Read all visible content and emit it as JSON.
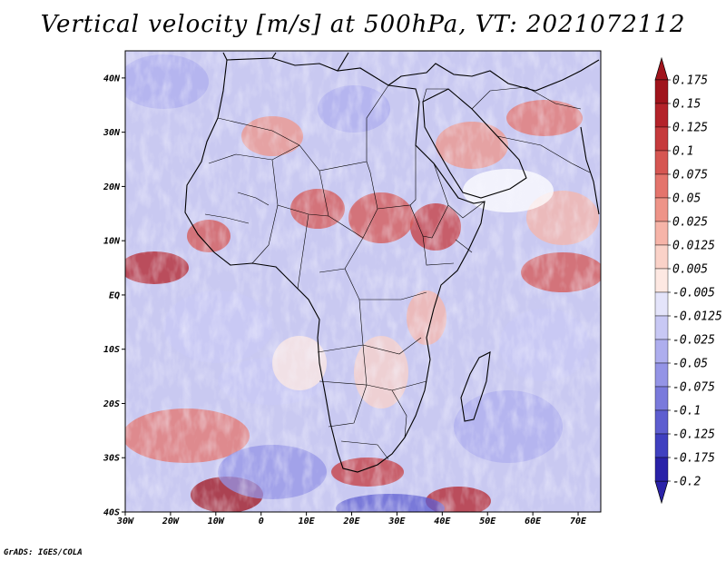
{
  "title": "Vertical velocity [m/s] at 500hPa, VT: 2021072112",
  "footer": "GrADS: IGES/COLA",
  "map": {
    "lon_range": [
      -30,
      75
    ],
    "lat_range": [
      -40,
      45
    ],
    "lat_ticks": [
      {
        "value": 40,
        "label": "40N"
      },
      {
        "value": 30,
        "label": "30N"
      },
      {
        "value": 20,
        "label": "20N"
      },
      {
        "value": 10,
        "label": "10N"
      },
      {
        "value": 0,
        "label": "EQ"
      },
      {
        "value": -10,
        "label": "10S"
      },
      {
        "value": -20,
        "label": "20S"
      },
      {
        "value": -30,
        "label": "30S"
      },
      {
        "value": -40,
        "label": "40S"
      }
    ],
    "lon_ticks": [
      {
        "value": -30,
        "label": "30W"
      },
      {
        "value": -20,
        "label": "20W"
      },
      {
        "value": -10,
        "label": "10W"
      },
      {
        "value": 0,
        "label": "0"
      },
      {
        "value": 10,
        "label": "10E"
      },
      {
        "value": 20,
        "label": "20E"
      },
      {
        "value": 30,
        "label": "30E"
      },
      {
        "value": 40,
        "label": "40E"
      },
      {
        "value": 50,
        "label": "50E"
      },
      {
        "value": 60,
        "label": "60E"
      },
      {
        "value": 70,
        "label": "70E"
      }
    ]
  },
  "colorbar": {
    "levels": [
      {
        "label": "0.175",
        "color": "#a0141c"
      },
      {
        "label": "0.15",
        "color": "#b4232a"
      },
      {
        "label": "0.125",
        "color": "#c63a3c"
      },
      {
        "label": "0.1",
        "color": "#d65652"
      },
      {
        "label": "0.075",
        "color": "#e4746c"
      },
      {
        "label": "0.05",
        "color": "#ee9488"
      },
      {
        "label": "0.025",
        "color": "#f6b4a8"
      },
      {
        "label": "0.0125",
        "color": "#fad2c8"
      },
      {
        "label": "0.005",
        "color": "#fde8e2"
      },
      {
        "label": "-0.005",
        "color": "#ffffff"
      },
      {
        "label": "-0.0125",
        "color": "#e4e4fa"
      },
      {
        "label": "-0.025",
        "color": "#c8c8f4"
      },
      {
        "label": "-0.05",
        "color": "#aeaeee"
      },
      {
        "label": "-0.075",
        "color": "#9494e6"
      },
      {
        "label": "-0.1",
        "color": "#7a7adc"
      },
      {
        "label": "-0.125",
        "color": "#5e5ed0"
      },
      {
        "label": "-0.175",
        "color": "#4040c0"
      },
      {
        "label": "-0.2",
        "color": "#2a22a8"
      }
    ],
    "top_triangle_color": "#a0141c",
    "bottom_triangle_color": "#2a22a8"
  }
}
